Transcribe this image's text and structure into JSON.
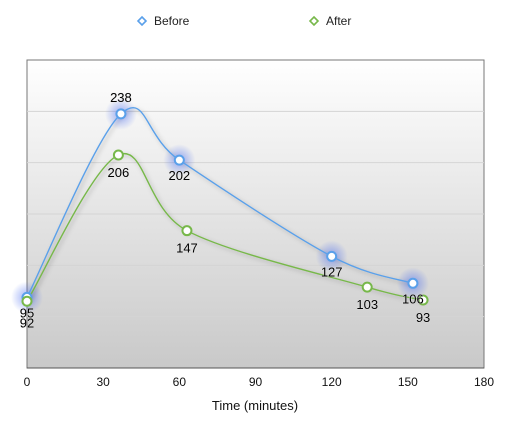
{
  "chart_data": {
    "type": "line",
    "xlabel": "Time (minutes)",
    "ylabel": "",
    "xlim": [
      0,
      180
    ],
    "ylim": [
      40,
      280
    ],
    "xticks": [
      0,
      30,
      60,
      90,
      120,
      150,
      180
    ],
    "grid": true,
    "legend_position": "top",
    "series": [
      {
        "name": "Before",
        "color": "#5aa0ea",
        "x": [
          0,
          37,
          60,
          120,
          152
        ],
        "y": [
          95,
          238,
          202,
          127,
          106
        ],
        "labels": [
          "95",
          "238",
          "202",
          "127",
          "106"
        ]
      },
      {
        "name": "After",
        "color": "#77b84a",
        "x": [
          0,
          36,
          63,
          134,
          156
        ],
        "y": [
          92,
          206,
          147,
          103,
          93
        ],
        "labels": [
          "92",
          "206",
          "147",
          "103",
          "93"
        ]
      }
    ]
  }
}
